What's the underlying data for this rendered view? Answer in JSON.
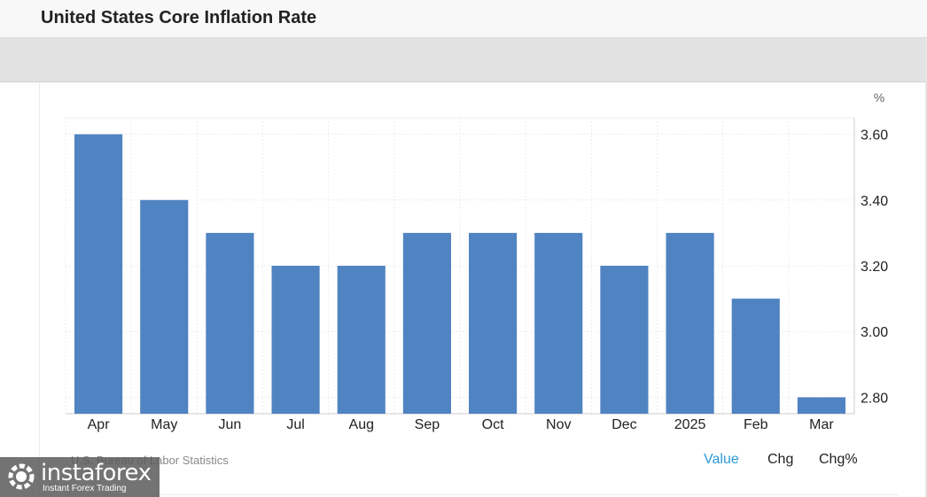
{
  "header": {
    "title": "United States Core Inflation Rate"
  },
  "chart_data": {
    "type": "bar",
    "categories": [
      "Apr",
      "May",
      "Jun",
      "Jul",
      "Aug",
      "Sep",
      "Oct",
      "Nov",
      "Dec",
      "2025",
      "Feb",
      "Mar"
    ],
    "values": [
      3.6,
      3.4,
      3.3,
      3.2,
      3.2,
      3.3,
      3.3,
      3.3,
      3.2,
      3.3,
      3.1,
      2.8
    ],
    "unit": "%",
    "ylim": [
      2.75,
      3.65
    ],
    "yticks": [
      "3.60",
      "3.40",
      "3.20",
      "3.00",
      "2.80"
    ],
    "ytick_values": [
      3.6,
      3.4,
      3.2,
      3.0,
      2.8
    ],
    "y_axis_side": "right",
    "grid": true,
    "bar_color": "#5083c1",
    "legend": "none"
  },
  "footer": {
    "source": "U.S. Bureau of Labor Statistics",
    "tabs": [
      {
        "label": "Value",
        "active": true
      },
      {
        "label": "Chg",
        "active": false
      },
      {
        "label": "Chg%",
        "active": false
      }
    ]
  },
  "watermark": {
    "name": "instaforex",
    "tagline": "Instant Forex Trading"
  },
  "colors": {
    "accent": "#2b9bd6",
    "bar": "#5083c1",
    "band": "#e2e2e2"
  }
}
